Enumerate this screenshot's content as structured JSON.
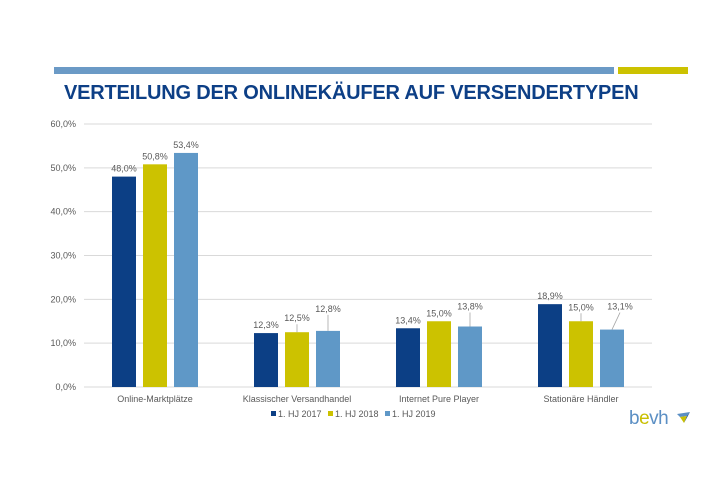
{
  "header": {
    "title": "VERTEILUNG DER ONLINEKÄUFER AUF VERSENDERTYPEN"
  },
  "colors": {
    "series_2017": "#0c3f85",
    "series_2018": "#ccc200",
    "series_2019": "#5f98c7",
    "accent_blue_bar": "#6b9ac6",
    "accent_yellow_bar": "#ccc200",
    "title": "#0d3f86"
  },
  "logo": {
    "text_b": "b",
    "text_e": "e",
    "text_vh": "vh"
  },
  "chart_data": {
    "type": "bar",
    "title": "VERTEILUNG DER ONLINEKÄUFER AUF VERSENDERTYPEN",
    "xlabel": "",
    "ylabel": "",
    "ylim": [
      0,
      60
    ],
    "yticks": [
      0,
      10,
      20,
      30,
      40,
      50,
      60
    ],
    "ytick_labels": [
      "0,0%",
      "10,0%",
      "20,0%",
      "30,0%",
      "40,0%",
      "50,0%",
      "60,0%"
    ],
    "grid": true,
    "legend_position": "bottom",
    "categories": [
      "Online-Marktplätze",
      "Klassischer Versandhandel",
      "Internet Pure Player",
      "Stationäre Händler"
    ],
    "series": [
      {
        "name": "1. HJ 2017",
        "values": [
          48.0,
          12.3,
          13.4,
          18.9
        ],
        "labels": [
          "48,0%",
          "12,3%",
          "13,4%",
          "18,9%"
        ]
      },
      {
        "name": "1. HJ 2018",
        "values": [
          50.8,
          12.5,
          15.0,
          15.0
        ],
        "labels": [
          "50,8%",
          "12,5%",
          "15,0%",
          "15,0%"
        ]
      },
      {
        "name": "1. HJ 2019",
        "values": [
          53.4,
          12.8,
          13.8,
          13.1
        ],
        "labels": [
          "53,4%",
          "12,8%",
          "13,8%",
          "13,1%"
        ]
      }
    ]
  }
}
